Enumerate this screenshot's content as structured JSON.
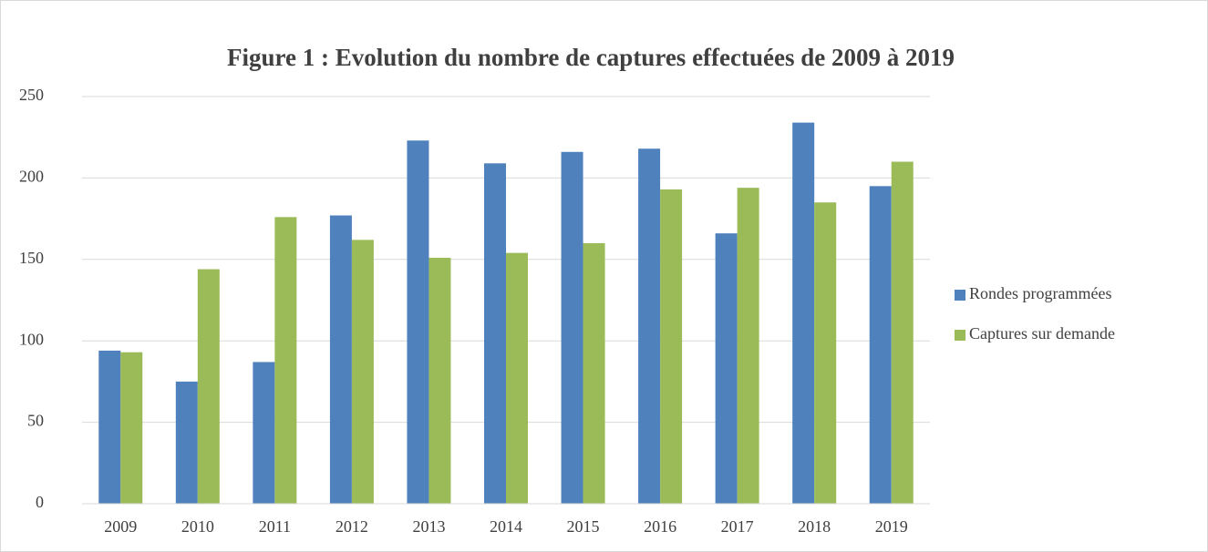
{
  "chart_data": {
    "type": "bar",
    "title": "Figure 1 : Evolution du nombre de captures effectuées de 2009 à 2019",
    "categories": [
      "2009",
      "2010",
      "2011",
      "2012",
      "2013",
      "2014",
      "2015",
      "2016",
      "2017",
      "2018",
      "2019"
    ],
    "series": [
      {
        "name": "Rondes programmées",
        "color": "#4f81bd",
        "values": [
          94,
          75,
          87,
          177,
          223,
          209,
          216,
          218,
          166,
          234,
          195
        ]
      },
      {
        "name": "Captures sur demande",
        "color": "#9bbb59",
        "values": [
          93,
          144,
          176,
          162,
          151,
          154,
          160,
          193,
          194,
          185,
          210
        ]
      }
    ],
    "ylim": [
      0,
      250
    ],
    "yticks": [
      0,
      50,
      100,
      150,
      200,
      250
    ],
    "grid": true,
    "legend": "right"
  }
}
